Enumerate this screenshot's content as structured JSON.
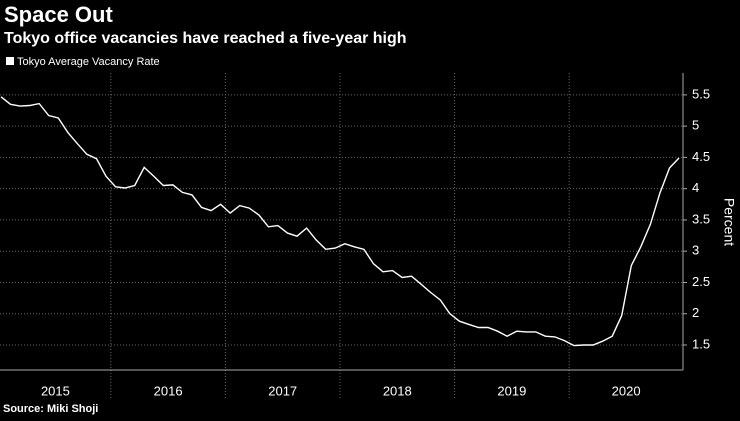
{
  "chart_data": {
    "type": "line",
    "title": "Space Out",
    "subtitle": "Tokyo office vacancies have reached a five-year high",
    "y_label": "Percent",
    "source": "Source: Miki Shoji",
    "x": [
      "2015-01",
      "2015-02",
      "2015-03",
      "2015-04",
      "2015-05",
      "2015-06",
      "2015-07",
      "2015-08",
      "2015-09",
      "2015-10",
      "2015-11",
      "2015-12",
      "2016-01",
      "2016-02",
      "2016-03",
      "2016-04",
      "2016-05",
      "2016-06",
      "2016-07",
      "2016-08",
      "2016-09",
      "2016-10",
      "2016-11",
      "2016-12",
      "2017-01",
      "2017-02",
      "2017-03",
      "2017-04",
      "2017-05",
      "2017-06",
      "2017-07",
      "2017-08",
      "2017-09",
      "2017-10",
      "2017-11",
      "2017-12",
      "2018-01",
      "2018-02",
      "2018-03",
      "2018-04",
      "2018-05",
      "2018-06",
      "2018-07",
      "2018-08",
      "2018-09",
      "2018-10",
      "2018-11",
      "2018-12",
      "2019-01",
      "2019-02",
      "2019-03",
      "2019-04",
      "2019-05",
      "2019-06",
      "2019-07",
      "2019-08",
      "2019-09",
      "2019-10",
      "2019-11",
      "2019-12",
      "2020-01",
      "2020-02",
      "2020-03",
      "2020-04",
      "2020-05",
      "2020-06",
      "2020-07",
      "2020-08",
      "2020-09",
      "2020-10",
      "2020-11",
      "2020-12"
    ],
    "series": [
      {
        "name": "Tokyo Average Vacancy Rate",
        "color": "#ffffff",
        "values": [
          5.47,
          5.35,
          5.32,
          5.33,
          5.36,
          5.17,
          5.13,
          4.9,
          4.72,
          4.55,
          4.48,
          4.2,
          4.03,
          4.01,
          4.05,
          4.34,
          4.2,
          4.05,
          4.06,
          3.94,
          3.9,
          3.7,
          3.65,
          3.75,
          3.61,
          3.73,
          3.69,
          3.58,
          3.39,
          3.41,
          3.29,
          3.24,
          3.37,
          3.18,
          3.03,
          3.05,
          3.12,
          3.07,
          3.03,
          2.8,
          2.67,
          2.69,
          2.58,
          2.6,
          2.47,
          2.34,
          2.22,
          2.0,
          1.88,
          1.83,
          1.78,
          1.78,
          1.72,
          1.64,
          1.72,
          1.71,
          1.71,
          1.64,
          1.63,
          1.57,
          1.49,
          1.5,
          1.5,
          1.56,
          1.64,
          1.97,
          2.77,
          3.07,
          3.43,
          3.93,
          4.33,
          4.49
        ]
      }
    ],
    "xticks": [
      "2015",
      "2016",
      "2017",
      "2018",
      "2019",
      "2020"
    ],
    "ylim": [
      1.1,
      5.85
    ],
    "yticks": [
      1.5,
      2.0,
      2.5,
      3.0,
      3.5,
      4.0,
      4.5,
      5.0,
      5.5
    ],
    "grid": true
  }
}
